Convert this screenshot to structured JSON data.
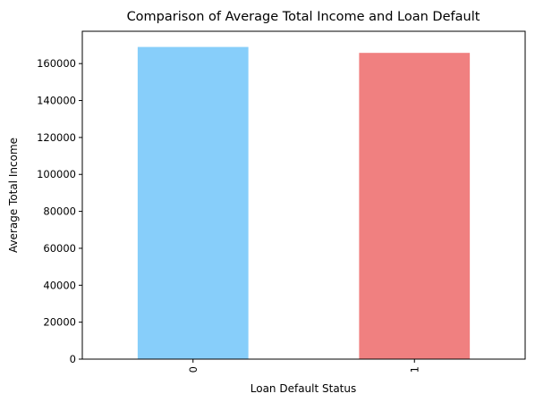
{
  "chart_data": {
    "type": "bar",
    "title": "Comparison of Average Total Income and Loan Default",
    "xlabel": "Loan Default Status",
    "ylabel": "Average Total Income",
    "categories": [
      "0",
      "1"
    ],
    "values": [
      169000,
      165800
    ],
    "colors": [
      "#87CEFA",
      "#F08080"
    ],
    "ylim": [
      0,
      177500
    ],
    "yticks": [
      0,
      20000,
      40000,
      60000,
      80000,
      100000,
      120000,
      140000,
      160000
    ],
    "ytick_labels": [
      "0",
      "20000",
      "40000",
      "60000",
      "80000",
      "100000",
      "120000",
      "140000",
      "160000"
    ],
    "xtick_rotation": 90,
    "grid": false,
    "legend": "none"
  }
}
